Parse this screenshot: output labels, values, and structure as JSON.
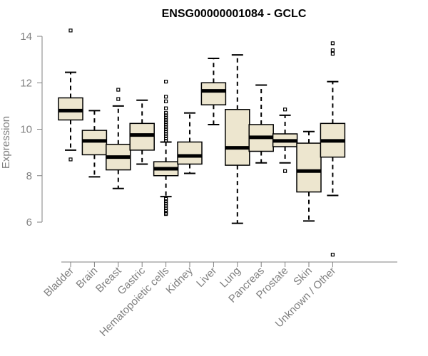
{
  "chart_data": {
    "type": "boxplot",
    "title": "ENSG00000001084 - GCLC",
    "xlabel": "",
    "ylabel": "Expression",
    "ylim": [
      4.5,
      14.5
    ],
    "yticks": [
      6,
      8,
      10,
      12,
      14
    ],
    "categories": [
      "Bladder",
      "Brain",
      "Breast",
      "Gastric",
      "Hematopoietic cells",
      "Kidney",
      "Liver",
      "Lung",
      "Pancreas",
      "Prostate",
      "Skin",
      "Unknown / Other"
    ],
    "boxes": [
      {
        "name": "Bladder",
        "min": 9.1,
        "q1": 10.4,
        "median": 10.8,
        "q3": 11.35,
        "max": 12.45,
        "outliers": [
          14.25,
          8.7
        ]
      },
      {
        "name": "Brain",
        "min": 7.95,
        "q1": 8.9,
        "median": 9.5,
        "q3": 9.95,
        "max": 10.8,
        "outliers": []
      },
      {
        "name": "Breast",
        "min": 7.45,
        "q1": 8.25,
        "median": 8.8,
        "q3": 9.35,
        "max": 11.0,
        "outliers": [
          11.3,
          11.7
        ]
      },
      {
        "name": "Gastric",
        "min": 8.5,
        "q1": 9.1,
        "median": 9.75,
        "q3": 10.25,
        "max": 11.25,
        "outliers": []
      },
      {
        "name": "Hematopoietic cells",
        "min": 7.1,
        "q1": 8.0,
        "median": 8.3,
        "q3": 8.6,
        "max": 9.45,
        "outliers": [
          12.05,
          11.4,
          11.2,
          10.9,
          10.7,
          10.6,
          10.5,
          10.4,
          10.3,
          10.2,
          10.1,
          10.0,
          9.9,
          9.8,
          9.7,
          9.6,
          9.5,
          7.0,
          6.9,
          6.8,
          6.7,
          6.6,
          6.5,
          6.4,
          6.35
        ]
      },
      {
        "name": "Kidney",
        "min": 8.1,
        "q1": 8.5,
        "median": 8.85,
        "q3": 9.45,
        "max": 10.7,
        "outliers": []
      },
      {
        "name": "Liver",
        "min": 10.2,
        "q1": 11.05,
        "median": 11.65,
        "q3": 12.0,
        "max": 13.05,
        "outliers": []
      },
      {
        "name": "Lung",
        "min": 5.95,
        "q1": 8.45,
        "median": 9.2,
        "q3": 10.85,
        "max": 13.2,
        "outliers": []
      },
      {
        "name": "Pancreas",
        "min": 8.55,
        "q1": 9.05,
        "median": 9.65,
        "q3": 10.2,
        "max": 11.9,
        "outliers": []
      },
      {
        "name": "Prostate",
        "min": 8.55,
        "q1": 9.25,
        "median": 9.5,
        "q3": 9.8,
        "max": 10.6,
        "outliers": [
          10.85,
          8.2
        ]
      },
      {
        "name": "Skin",
        "min": 6.05,
        "q1": 7.3,
        "median": 8.2,
        "q3": 9.4,
        "max": 9.9,
        "outliers": []
      },
      {
        "name": "Unknown / Other",
        "min": 7.15,
        "q1": 8.8,
        "median": 9.5,
        "q3": 10.25,
        "max": 12.05,
        "outliers": [
          13.7,
          13.4,
          13.25,
          4.6
        ]
      }
    ]
  }
}
